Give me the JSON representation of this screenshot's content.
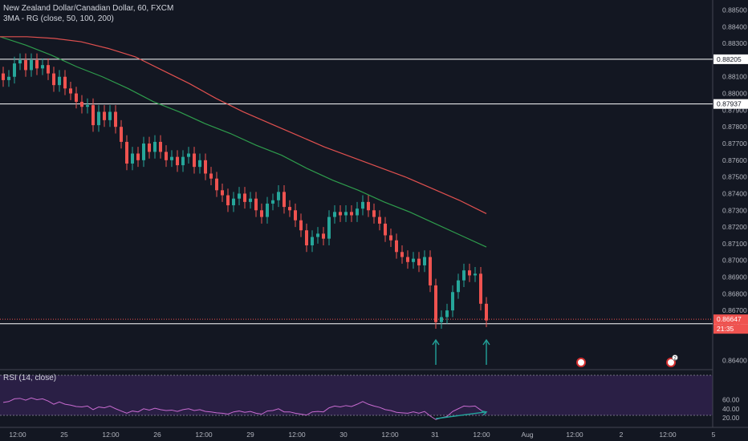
{
  "header": {
    "symbol_line": "New Zealand Dollar/Canadian Dollar, 60, FXCM",
    "indicator_line": "3MA - RG (close, 50, 100, 200)",
    "rsi_line": "RSI (14, close)"
  },
  "colors": {
    "background": "#131722",
    "up_candle": "#26a69a",
    "down_candle": "#ef5350",
    "ma_red": "#e0504f",
    "ma_green": "#2e9c4c",
    "level_line": "#ffffff",
    "rsi_line": "#c86bd0",
    "rsi_band": "#2a1f45",
    "arrow": "#22a39a",
    "axis_text": "#b2b5be"
  },
  "chart_data": {
    "type": "candlestick",
    "price_axis": {
      "ticks": [
        "0.88500",
        "0.88400",
        "0.88300",
        "0.88100",
        "0.88000",
        "0.87900",
        "0.87800",
        "0.87700",
        "0.87600",
        "0.87500",
        "0.87400",
        "0.87300",
        "0.87200",
        "0.87100",
        "0.87000",
        "0.86900",
        "0.86800",
        "0.86700",
        "0.86400"
      ],
      "range": [
        0.8635,
        0.8856
      ]
    },
    "time_axis": {
      "ticks": [
        "12:00",
        "25",
        "12:00",
        "26",
        "12:00",
        "29",
        "12:00",
        "30",
        "12:00",
        "31",
        "12:00",
        "Aug",
        "12:00",
        "2",
        "12:00",
        "5"
      ]
    },
    "horizontal_levels": [
      {
        "value": 0.88205,
        "label": "0.88205"
      },
      {
        "value": 0.87937,
        "label": "0.87937"
      },
      {
        "value": 0.8662,
        "label": "0.86622"
      }
    ],
    "current_price": {
      "value": 0.86647,
      "label": "0.86647",
      "countdown": "21:35"
    },
    "moving_averages": [
      {
        "period": 50,
        "color": "green",
        "values": [
          0.8834,
          0.8829,
          0.8823,
          0.8816,
          0.881,
          0.8803,
          0.8795,
          0.8789,
          0.8782,
          0.8776,
          0.8769,
          0.8763,
          0.8755,
          0.8748,
          0.8742,
          0.8735,
          0.8729,
          0.8722,
          0.8715,
          0.8708
        ]
      },
      {
        "period": 100,
        "color": "red",
        "values": [
          0.8834,
          0.8834,
          0.8833,
          0.8831,
          0.8827,
          0.8822,
          0.8814,
          0.8806,
          0.8797,
          0.8789,
          0.8782,
          0.8775,
          0.8768,
          0.8762,
          0.8756,
          0.875,
          0.8743,
          0.8736,
          0.8728
        ]
      }
    ],
    "candles_close": [
      0.8808,
      0.881,
      0.8818,
      0.882,
      0.8814,
      0.882,
      0.8815,
      0.8817,
      0.8812,
      0.8805,
      0.881,
      0.8803,
      0.88,
      0.8795,
      0.8792,
      0.8793,
      0.8781,
      0.8789,
      0.8784,
      0.8789,
      0.878,
      0.8771,
      0.8758,
      0.8764,
      0.876,
      0.877,
      0.8765,
      0.8771,
      0.8765,
      0.876,
      0.8762,
      0.8757,
      0.8762,
      0.8764,
      0.8756,
      0.876,
      0.8752,
      0.8749,
      0.8742,
      0.8739,
      0.8733,
      0.8737,
      0.874,
      0.8735,
      0.8737,
      0.873,
      0.8726,
      0.8734,
      0.8736,
      0.8741,
      0.8732,
      0.873,
      0.8724,
      0.8718,
      0.8709,
      0.8714,
      0.8716,
      0.8713,
      0.8726,
      0.8729,
      0.8727,
      0.8729,
      0.8727,
      0.8731,
      0.8735,
      0.873,
      0.8726,
      0.8722,
      0.8715,
      0.8712,
      0.8705,
      0.8702,
      0.8699,
      0.8701,
      0.8697,
      0.8702,
      0.8685,
      0.8663,
      0.8666,
      0.867,
      0.8681,
      0.8688,
      0.8694,
      0.8691,
      0.8692,
      0.8674,
      0.8664
    ],
    "arrows": [
      {
        "direction": "up",
        "candle_index": 77
      },
      {
        "direction": "up",
        "candle_index": 86
      }
    ],
    "rsi": {
      "ticks": [
        "60.00",
        "40.00",
        "20.00"
      ],
      "levels": [
        70,
        30
      ],
      "values": [
        54,
        56,
        62,
        63,
        59,
        64,
        60,
        62,
        57,
        50,
        55,
        50,
        48,
        45,
        44,
        46,
        38,
        44,
        42,
        46,
        40,
        35,
        30,
        35,
        33,
        40,
        37,
        41,
        38,
        36,
        37,
        34,
        38,
        40,
        36,
        38,
        34,
        33,
        31,
        30,
        28,
        33,
        35,
        32,
        34,
        30,
        28,
        35,
        36,
        40,
        33,
        33,
        30,
        28,
        26,
        33,
        34,
        33,
        42,
        46,
        44,
        47,
        45,
        50,
        56,
        50,
        46,
        43,
        38,
        36,
        32,
        31,
        30,
        33,
        30,
        34,
        24,
        16,
        20,
        23,
        34,
        40,
        46,
        45,
        46,
        37,
        30
      ],
      "divergence_line": [
        [
          77,
          18
        ],
        [
          86,
          33
        ]
      ]
    },
    "markers": [
      {
        "type": "event"
      },
      {
        "type": "event",
        "count": "2"
      }
    ]
  }
}
